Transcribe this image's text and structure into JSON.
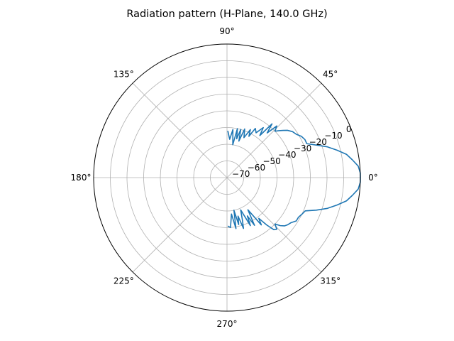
{
  "chart_data": {
    "type": "line",
    "projection": "polar",
    "title": "Radiation pattern (H-Plane, 140.0 GHz)",
    "theta_ticks": [
      "0°",
      "45°",
      "90°",
      "135°",
      "180°",
      "225°",
      "270°",
      "315°"
    ],
    "theta_tick_values": [
      0,
      45,
      90,
      135,
      180,
      225,
      270,
      315
    ],
    "r_ticks": [
      "−70",
      "−60",
      "−50",
      "−40",
      "−30",
      "−20",
      "−10",
      "0"
    ],
    "r_tick_values": [
      -70,
      -60,
      -50,
      -40,
      -30,
      -20,
      -10,
      0
    ],
    "rlim": [
      -80,
      0
    ],
    "grid": true,
    "series": [
      {
        "color": "#1f77b4",
        "theta_deg": [
          -89,
          -86,
          -83,
          -80,
          -78,
          -76,
          -74,
          -72,
          -70,
          -67,
          -64,
          -62,
          -60,
          -57,
          -54,
          -52,
          -50,
          -48,
          -46,
          -44,
          -42,
          -40,
          -38,
          -35,
          -32,
          -29,
          -26,
          -23,
          -20,
          -17,
          -14,
          -11,
          -8,
          -5,
          -2,
          0,
          2,
          5,
          8,
          11,
          14,
          17,
          20,
          23,
          26,
          29,
          32,
          35,
          38,
          40,
          42,
          44,
          46,
          48,
          50,
          52,
          54,
          57,
          60,
          62,
          64,
          67,
          70,
          72,
          74,
          76,
          78,
          80,
          83,
          86,
          89
        ],
        "r_db": [
          -51,
          -50,
          -58,
          -49,
          -60,
          -51,
          -56,
          -48,
          -53,
          -59,
          -48,
          -54,
          -47,
          -57,
          -45,
          -49,
          -43,
          -38,
          -37,
          -40,
          -37,
          -35,
          -34,
          -33,
          -31,
          -31,
          -30,
          -29,
          -23,
          -17,
          -12,
          -7,
          -4,
          -1,
          0,
          0,
          0,
          -1,
          -4,
          -7,
          -12,
          -17,
          -23,
          -28,
          -28,
          -29,
          -31,
          -32,
          -34,
          -36,
          -38,
          -40,
          -37,
          -44,
          -38,
          -48,
          -43,
          -48,
          -46,
          -52,
          -48,
          -54,
          -49,
          -57,
          -50,
          -56,
          -50,
          -60,
          -51,
          -57,
          -52
        ]
      }
    ]
  }
}
